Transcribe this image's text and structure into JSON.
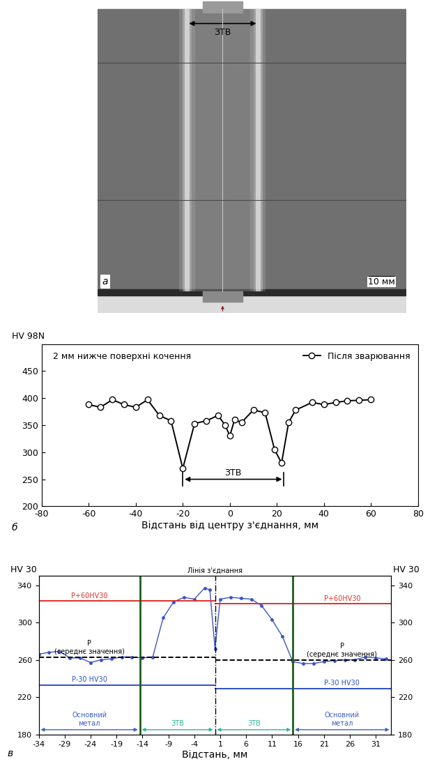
{
  "chart_data": [
    {
      "type": "image",
      "panel": "а",
      "zone_label": "ЗТВ",
      "scale_bar": "10 мм"
    },
    {
      "type": "line",
      "panel": "б",
      "y_label": "HV 98N",
      "x_label": "Відстань від центру з'єднання, мм",
      "annotation": "2 мм нижче поверхні кочення",
      "series": [
        {
          "name": "Після зварювання",
          "color": "#000000",
          "marker": "o",
          "x": [
            -60,
            -55,
            -50,
            -45,
            -40,
            -35,
            -30,
            -25,
            -20,
            -15,
            -10,
            -5,
            -2,
            0,
            2,
            5,
            10,
            15,
            19,
            22,
            25,
            28,
            35,
            40,
            45,
            50,
            55,
            60
          ],
          "values": [
            388,
            383,
            397,
            388,
            383,
            397,
            368,
            358,
            270,
            353,
            358,
            368,
            350,
            330,
            360,
            355,
            378,
            373,
            305,
            280,
            355,
            378,
            392,
            388,
            392,
            395,
            396,
            397
          ]
        }
      ],
      "legend": "upper right",
      "zone": {
        "label": "ЗТВ",
        "x": [
          -20,
          23
        ],
        "y": 250
      },
      "xlim": [
        -80,
        80
      ],
      "xticks": [
        -80,
        -60,
        -40,
        -20,
        0,
        20,
        40,
        60,
        80
      ],
      "ylim": [
        200,
        500
      ],
      "yticks": [
        200,
        250,
        300,
        350,
        400,
        450
      ],
      "grid": false
    },
    {
      "type": "line",
      "panel": "в",
      "y_label": "HV 30",
      "y2_label": "HV 30",
      "x_label": "Відстань, мм",
      "series": [
        {
          "color": "#3a55c8",
          "marker": "o",
          "x": [
            -34,
            -32,
            -30,
            -28,
            -26,
            -24,
            -22,
            -20,
            -18,
            -16,
            -14,
            -12,
            -10,
            -8,
            -6,
            -4,
            -2,
            -1,
            0,
            1,
            3,
            5,
            7,
            9,
            11,
            13,
            15,
            17,
            19,
            21,
            23,
            25,
            27,
            29,
            31,
            33
          ],
          "values": [
            266,
            268,
            269,
            262,
            262,
            257,
            260,
            261,
            263,
            263,
            262,
            263,
            305,
            322,
            327,
            325,
            337,
            335,
            272,
            325,
            327,
            326,
            325,
            318,
            303,
            285,
            258,
            256,
            256,
            258,
            259,
            260,
            260,
            263,
            262,
            261
          ]
        }
      ],
      "reference_lines": [
        {
          "label": "P+60HV30",
          "color": "#e0302a",
          "line_style": "solid",
          "values": [
            323,
            320
          ]
        },
        {
          "label": "P\n(середнє значення)",
          "color": "#000000",
          "line_style": "dashed",
          "values": [
            263,
            260
          ]
        },
        {
          "label": "P-30 HV30",
          "color": "#2f4fc4",
          "line_style": "solid",
          "values": [
            233,
            229
          ]
        }
      ],
      "joint_line": {
        "label": "Лінія з'єднання",
        "x": 0
      },
      "boundaries": {
        "color": "#1d5e1d",
        "x": [
          -14.5,
          15
        ]
      },
      "regions": [
        {
          "label": "Основний\nметал",
          "x": [
            -34,
            -14.5
          ],
          "color": "#3f5fbf"
        },
        {
          "label": "ЗТВ",
          "x": [
            -14.5,
            0
          ],
          "color": "#2fb39a"
        },
        {
          "label": "ЗТВ",
          "x": [
            0,
            15
          ],
          "color": "#2fb39a"
        },
        {
          "label": "Основний\nметал",
          "x": [
            15,
            34
          ],
          "color": "#3f5fbf"
        }
      ],
      "xlim": [
        -34,
        34
      ],
      "xticks": [
        -34,
        -29,
        -24,
        -19,
        -14,
        -9,
        -4,
        1,
        6,
        11,
        16,
        21,
        26,
        31
      ],
      "ylim": [
        180,
        350
      ],
      "yticks": [
        180,
        220,
        260,
        300,
        340
      ],
      "y2lim": [
        180,
        350
      ],
      "y2ticks": [
        180,
        220,
        260,
        300,
        340
      ],
      "grid": false
    }
  ]
}
